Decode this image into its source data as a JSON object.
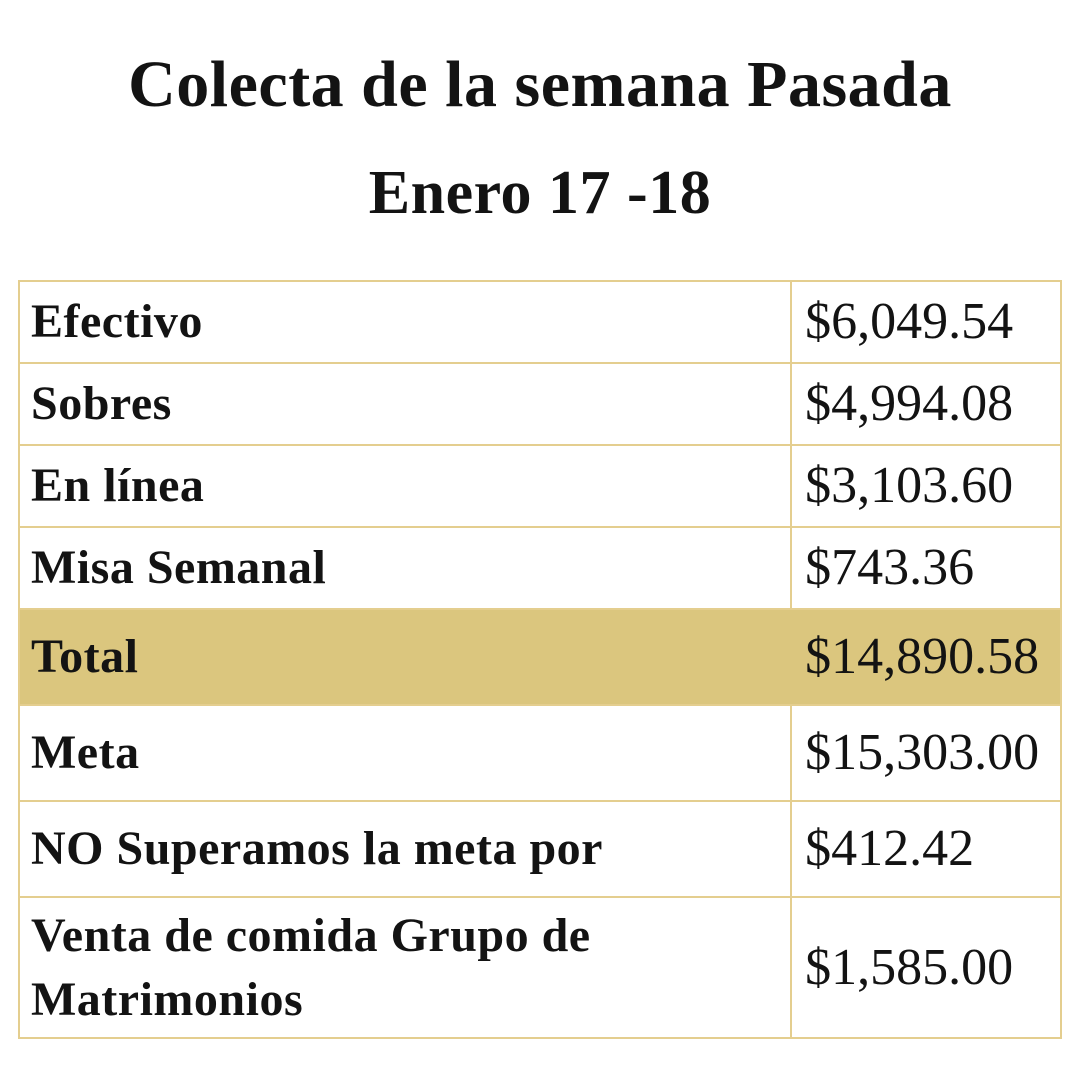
{
  "header": {
    "title_line1": "Colecta de la semana Pasada",
    "title_line2": "Enero 17 -18"
  },
  "table": {
    "rows": [
      {
        "label": "Efectivo",
        "value": "$6,049.54",
        "highlight": false
      },
      {
        "label": "Sobres",
        "value": "$4,994.08",
        "highlight": false
      },
      {
        "label": "En línea",
        "value": "$3,103.60",
        "highlight": false
      },
      {
        "label": "Misa Semanal",
        "value": "$743.36",
        "highlight": false
      },
      {
        "label": "Total",
        "value": "$14,890.58",
        "highlight": true
      },
      {
        "label": "Meta",
        "value": "$15,303.00",
        "highlight": false
      },
      {
        "label": "NO Superamos la meta por",
        "value": "$412.42",
        "highlight": false
      },
      {
        "label": "Venta de comida Grupo de Matrimonios",
        "value": "$1,585.00",
        "highlight": false
      }
    ],
    "colors": {
      "background": "#ffffff",
      "text": "#131313",
      "border": "#e4ce8f",
      "highlight_background": "#dbc67e"
    }
  },
  "chart_data": {
    "type": "table",
    "title": "Colecta de la semana Pasada",
    "subtitle": "Enero 17 -18",
    "rows": [
      {
        "label": "Efectivo",
        "display": "$6,049.54",
        "amount": 6049.54
      },
      {
        "label": "Sobres",
        "display": "$4,994.08",
        "amount": 4994.08
      },
      {
        "label": "En línea",
        "display": "$3,103.60",
        "amount": 3103.6
      },
      {
        "label": "Misa Semanal",
        "display": "$743.36",
        "amount": 743.36
      },
      {
        "label": "Total",
        "display": "$14,890.58",
        "amount": 14890.58
      },
      {
        "label": "Meta",
        "display": "$15,303.00",
        "amount": 15303.0
      },
      {
        "label": "NO Superamos la meta por",
        "display": "$412.42",
        "amount": 412.42
      },
      {
        "label": "Venta de comida Grupo de Matrimonios",
        "display": "$1,585.00",
        "amount": 1585.0
      }
    ],
    "highlighted_row": "Total",
    "layout_hints": {
      "columns": 2,
      "grid": true,
      "highlight_style": "gold row background"
    }
  }
}
